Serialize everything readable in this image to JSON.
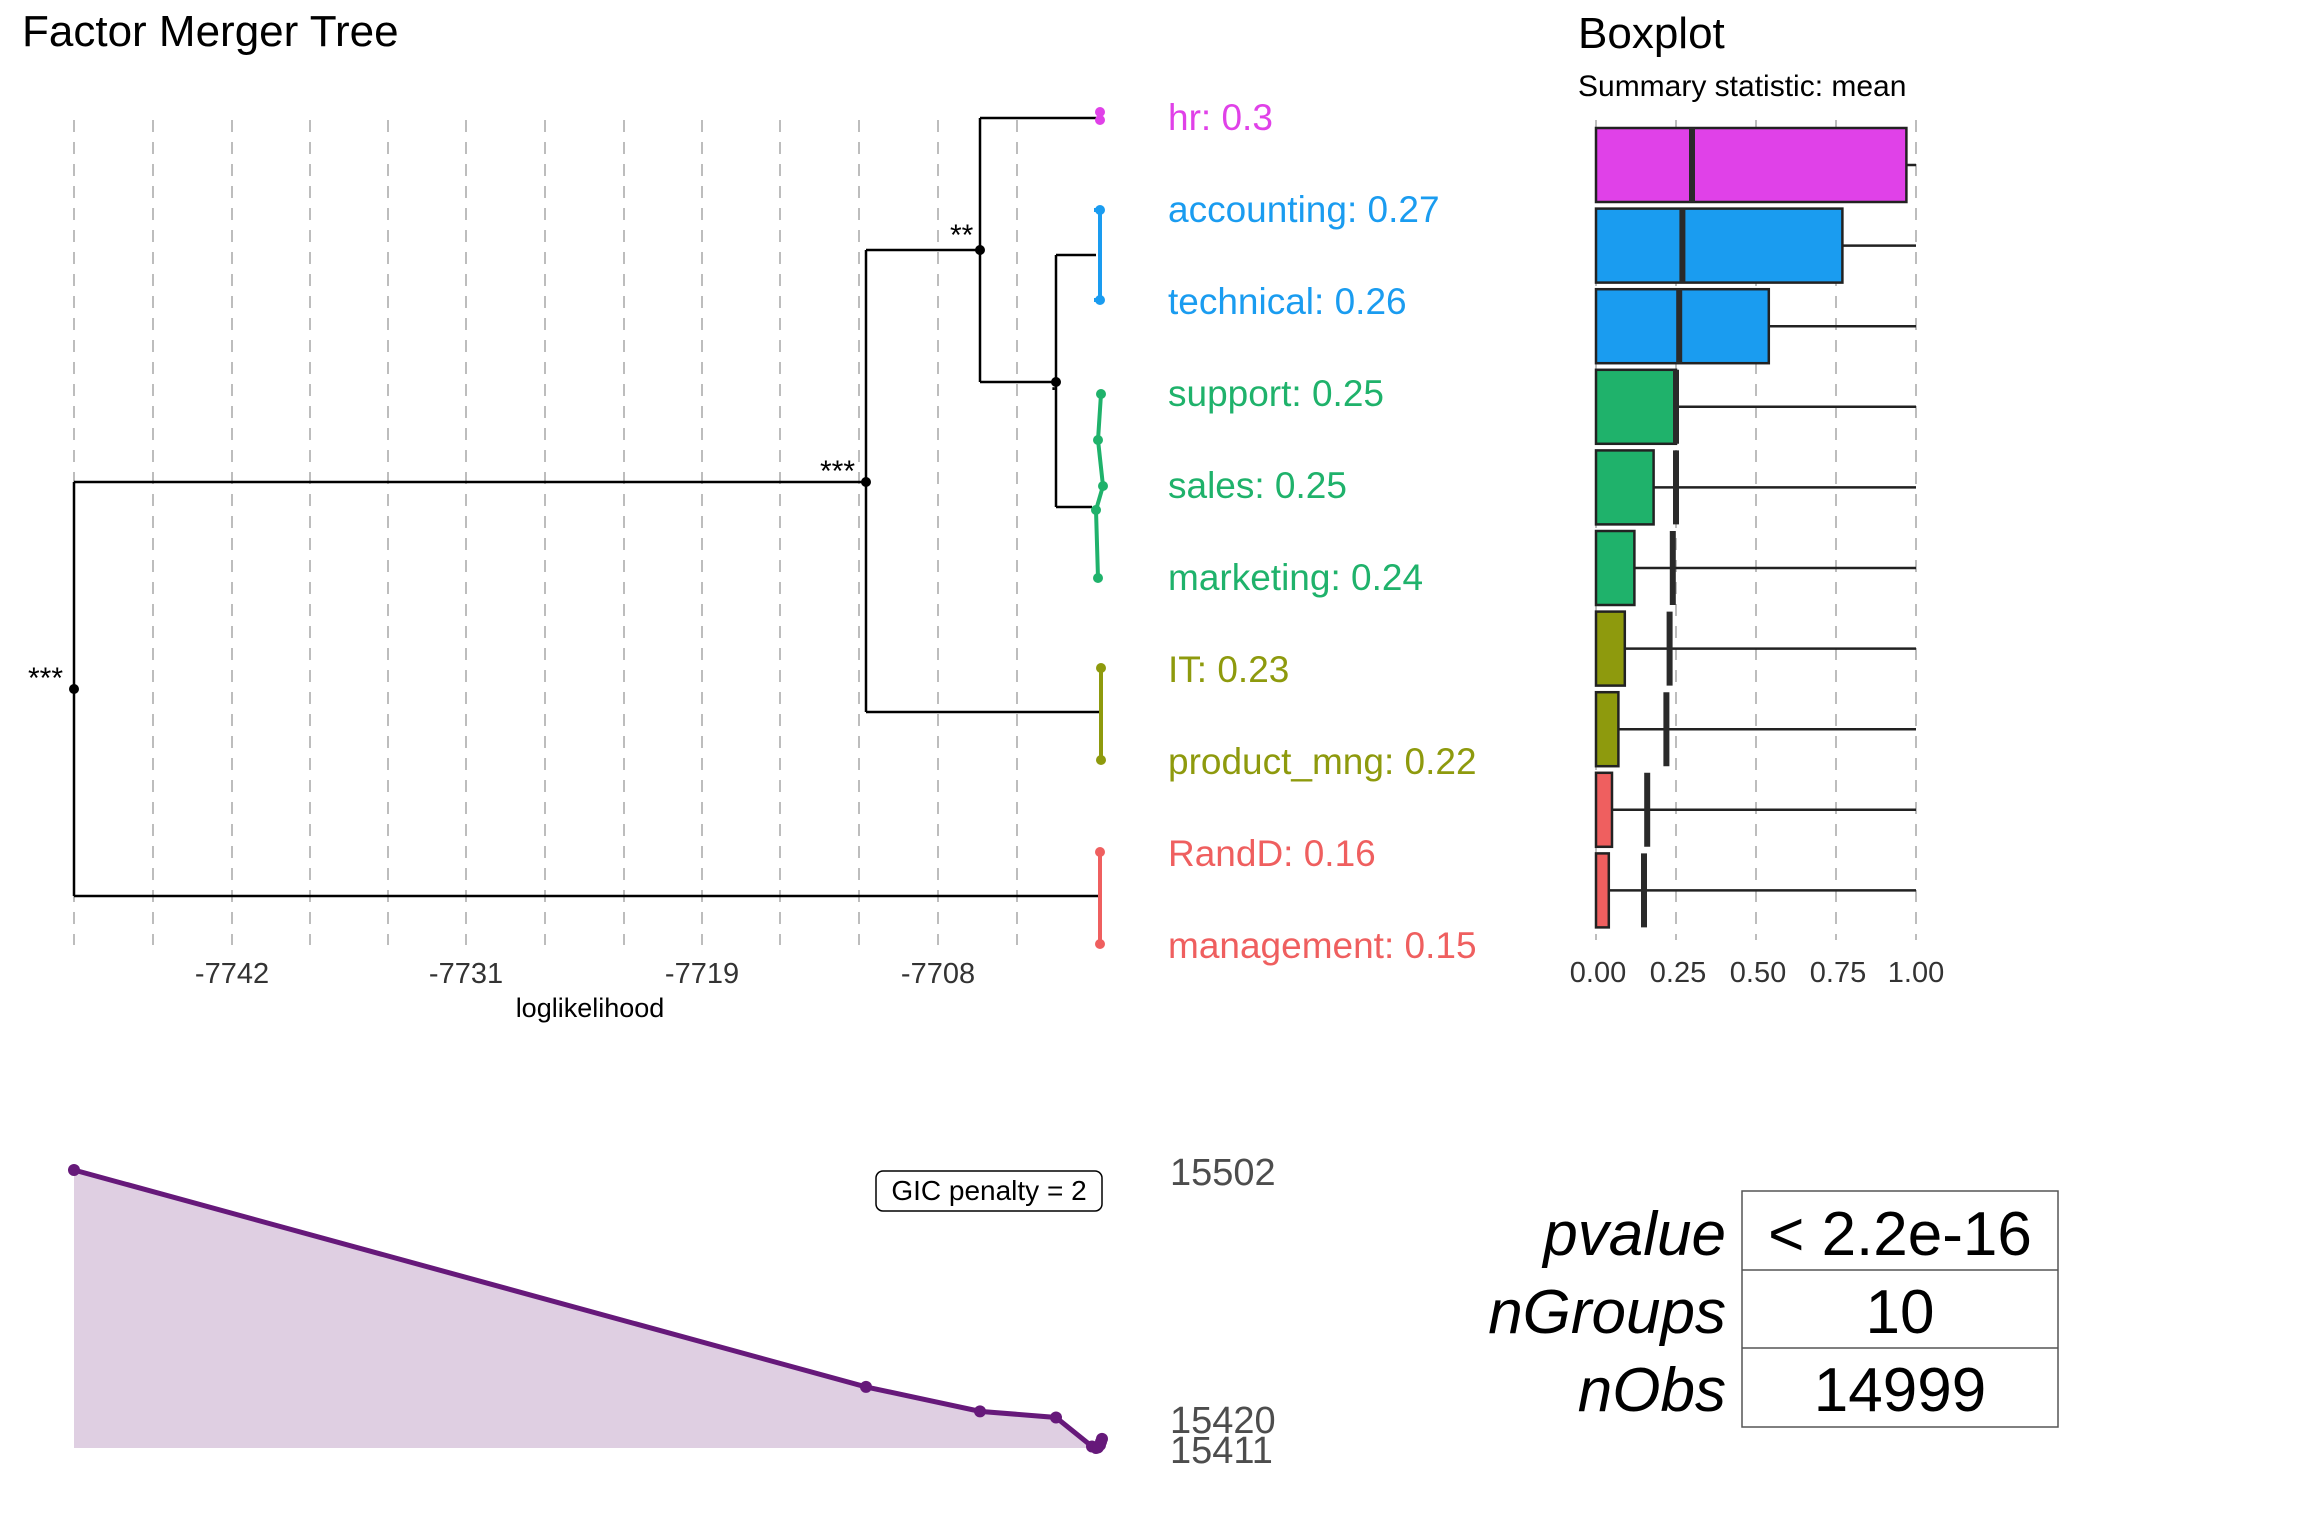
{
  "colors": {
    "hr": "#e041e8",
    "blue": "#1a9cf0",
    "green": "#1fb26b",
    "olive": "#8e9a0d",
    "red": "#ef5f5f",
    "purple": "#66197a",
    "purple_fill": "#dfcfe2",
    "grid": "#bdbdbd"
  },
  "tree_panel": {
    "title": "Factor Merger Tree",
    "xlabel": "loglikelihood",
    "ticks": [
      "-7742",
      "-7731",
      "-7719",
      "-7708"
    ],
    "sig_root": "***",
    "sig_mid": "***",
    "sig_hr": "**",
    "sig_small": "."
  },
  "boxplot_panel": {
    "title": "Boxplot",
    "subtitle": "Summary statistic: mean",
    "ticks": [
      "0.00",
      "0.25",
      "0.50",
      "0.75",
      "1.00"
    ]
  },
  "gic_panel": {
    "penalty_label": "GIC penalty = 2",
    "top_value": "15502",
    "mid_value": "15420",
    "bottom_value": "15411"
  },
  "stats_table": {
    "rows": [
      {
        "label": "pvalue",
        "value": "< 2.2e-16"
      },
      {
        "label": "nGroups",
        "value": "10"
      },
      {
        "label": "nObs",
        "value": "14999"
      }
    ]
  },
  "chart_data": [
    {
      "type": "line",
      "title": "Factor Merger Tree",
      "xlabel": "loglikelihood",
      "x_ticks": [
        -7742,
        -7731,
        -7719,
        -7708
      ],
      "groups": [
        {
          "label": "hr: 0.3",
          "name": "hr",
          "mean": 0.3,
          "color": "#e041e8"
        },
        {
          "label": "accounting: 0.27",
          "name": "accounting",
          "mean": 0.27,
          "color": "#1a9cf0"
        },
        {
          "label": "technical: 0.26",
          "name": "technical",
          "mean": 0.26,
          "color": "#1a9cf0"
        },
        {
          "label": "support: 0.25",
          "name": "support",
          "mean": 0.25,
          "color": "#1fb26b"
        },
        {
          "label": "sales: 0.25",
          "name": "sales",
          "mean": 0.25,
          "color": "#1fb26b"
        },
        {
          "label": "marketing: 0.24",
          "name": "marketing",
          "mean": 0.24,
          "color": "#1fb26b"
        },
        {
          "label": "IT: 0.23",
          "name": "IT",
          "mean": 0.23,
          "color": "#8e9a0d"
        },
        {
          "label": "product_mng: 0.22",
          "name": "product_mng",
          "mean": 0.22,
          "color": "#8e9a0d"
        },
        {
          "label": "RandD: 0.16",
          "name": "RandD",
          "mean": 0.16,
          "color": "#ef5f5f"
        },
        {
          "label": "management: 0.15",
          "name": "management",
          "mean": 0.15,
          "color": "#ef5f5f"
        }
      ],
      "merges": [
        {
          "loglik": -7752.3,
          "significance": "***"
        },
        {
          "loglik": -7710.9,
          "significance": "***"
        },
        {
          "loglik": -7704.9,
          "significance": "**"
        },
        {
          "loglik": -7700.9,
          "significance": "."
        }
      ]
    },
    {
      "type": "bar",
      "title": "Boxplot",
      "subtitle": "Summary statistic: mean",
      "x_range": [
        0,
        1
      ],
      "x_ticks": [
        0,
        0.25,
        0.5,
        0.75,
        1.0
      ],
      "categories": [
        "hr",
        "accounting",
        "technical",
        "support",
        "sales",
        "marketing",
        "IT",
        "product_mng",
        "RandD",
        "management"
      ],
      "box_upper": [
        0.97,
        0.77,
        0.54,
        0.25,
        0.18,
        0.12,
        0.09,
        0.07,
        0.05,
        0.04
      ],
      "box_lower": [
        0,
        0,
        0,
        0,
        0,
        0,
        0,
        0,
        0,
        0
      ],
      "mean_mark": [
        0.3,
        0.27,
        0.26,
        0.25,
        0.25,
        0.24,
        0.23,
        0.22,
        0.16,
        0.15
      ],
      "whisker_max": [
        1,
        1,
        1,
        1,
        1,
        1,
        1,
        1,
        1,
        1
      ]
    },
    {
      "type": "area",
      "penalty": "GIC penalty = 2",
      "y_labels": [
        15502,
        15420,
        15411
      ],
      "y_values": [
        15502,
        15431,
        15423,
        15421,
        15411.5,
        15411,
        15411.2,
        15412,
        15413,
        15414
      ]
    }
  ]
}
